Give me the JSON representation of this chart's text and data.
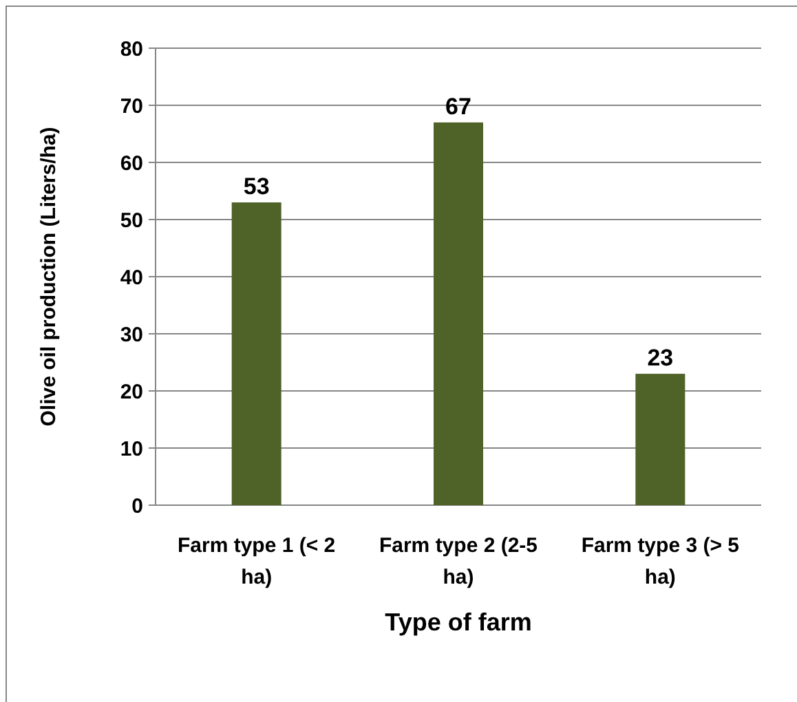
{
  "chart_data": {
    "type": "bar",
    "xlabel": "Type of farm",
    "ylabel": "Olive oil production (Liters/ha)",
    "categories": [
      "Farm type 1 (< 2 ha)",
      "Farm type 2 (2-5 ha)",
      "Farm type 3 (> 5 ha)"
    ],
    "values": [
      53,
      67,
      23
    ],
    "color": "#4f6228",
    "ylim": [
      0,
      80
    ],
    "yticks": [
      0,
      10,
      20,
      30,
      40,
      50,
      60,
      70,
      80
    ],
    "grid": "y",
    "data_labels": true
  }
}
